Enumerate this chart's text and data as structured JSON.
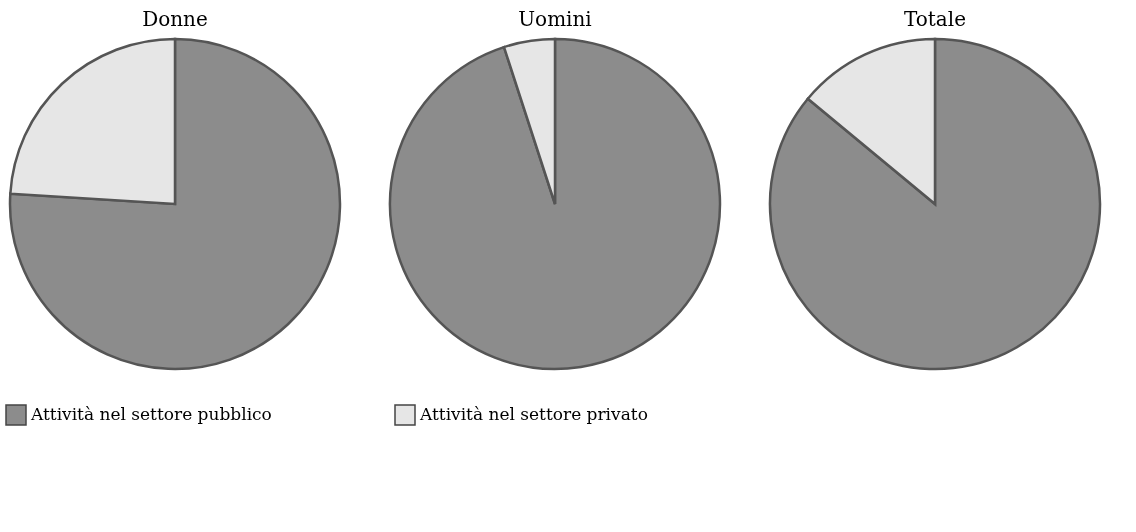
{
  "chart_data": {
    "type": "pie",
    "categories": [
      "Attività nel settore pubblico",
      "Attività nel settore privato"
    ],
    "colors": [
      "#8c8c8c",
      "#e6e6e6"
    ],
    "legend": "bottom",
    "series": [
      {
        "name": "Donne",
        "values": [
          76,
          24
        ]
      },
      {
        "name": "Uomini",
        "values": [
          95,
          5
        ]
      },
      {
        "name": "Totale",
        "values": [
          86,
          14
        ]
      }
    ]
  }
}
